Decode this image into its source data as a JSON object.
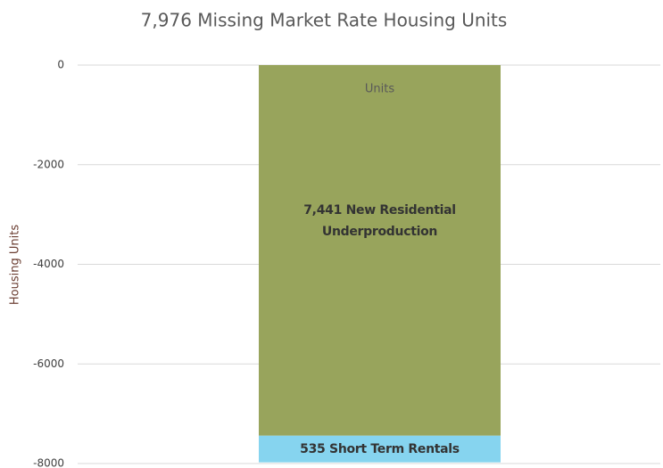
{
  "chart_data": {
    "type": "stacked_bar",
    "title": "7,976 Missing Market Rate Housing Units",
    "y_label": "Housing Units",
    "categories": [
      "Units"
    ],
    "series": [
      {
        "name": "7,441 New Residential Underproduction",
        "color": "#98a45c",
        "values": [
          -7441
        ]
      },
      {
        "name": "535 Short Term Rentals",
        "color": "#86d4ef",
        "values": [
          -535
        ]
      }
    ],
    "ylim": [
      -8000,
      0
    ],
    "yticks": [
      0,
      -2000,
      -4000,
      -6000,
      -8000
    ],
    "grid": true
  }
}
